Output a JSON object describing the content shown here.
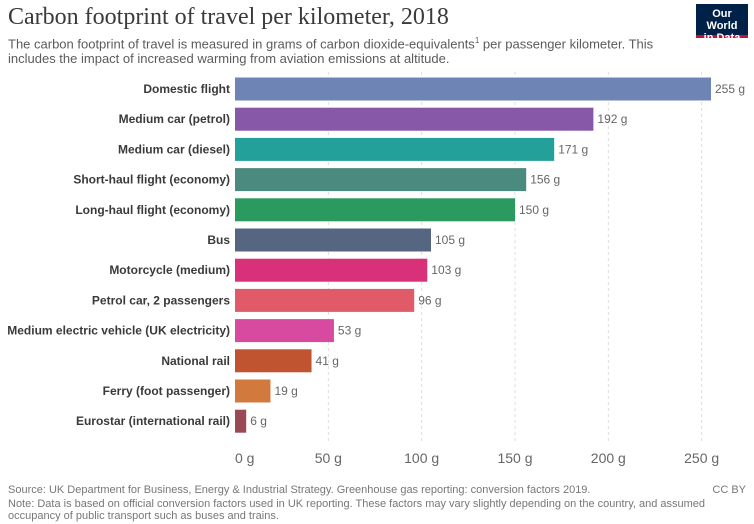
{
  "title": "Carbon footprint of travel per kilometer, 2018",
  "subtitle": {
    "before": "The carbon footprint of travel is measured in grams of carbon dioxide-equivalents",
    "sup": "1",
    "after": " per passenger kilometer. This includes the impact of increased warming from aviation emissions at altitude."
  },
  "logo": {
    "line1": "Our World",
    "line2": "in Data"
  },
  "source": "Source: UK Department for Business, Energy & Industrial Strategy. Greenhouse gas reporting: conversion factors 2019.",
  "note": "Note: Data is based on official conversion factors used in UK reporting. These factors may vary slightly depending on the country, and assumed occupancy of public transport such as buses and trains.",
  "license": "CC BY",
  "chart_data": {
    "type": "bar",
    "orientation": "horizontal",
    "unit": "g",
    "xlim": [
      0,
      255
    ],
    "ticks": [
      0,
      50,
      100,
      150,
      200,
      250
    ],
    "tick_labels": [
      "0 g",
      "50 g",
      "100 g",
      "150 g",
      "200 g",
      "250 g"
    ],
    "grid": true,
    "categories": [
      "Domestic flight",
      "Medium car (petrol)",
      "Medium car (diesel)",
      "Short-haul flight (economy)",
      "Long-haul flight (economy)",
      "Bus",
      "Motorcycle (medium)",
      "Petrol car, 2 passengers",
      "Medium electric vehicle (UK electricity)",
      "National rail",
      "Ferry (foot passenger)",
      "Eurostar (international rail)"
    ],
    "values": [
      255,
      192,
      171,
      156,
      150,
      105,
      103,
      96,
      53,
      41,
      19,
      6
    ],
    "value_labels": [
      "255 g",
      "192 g",
      "171 g",
      "156 g",
      "150 g",
      "105 g",
      "103 g",
      "96 g",
      "53 g",
      "41 g",
      "19 g",
      "6 g"
    ],
    "colors": [
      "#6d84b4",
      "#8758a7",
      "#23a09a",
      "#4b8a7f",
      "#2a9a5e",
      "#576680",
      "#d9307a",
      "#e05a67",
      "#d84a9f",
      "#c05330",
      "#d27a3e",
      "#9a4a55"
    ]
  }
}
